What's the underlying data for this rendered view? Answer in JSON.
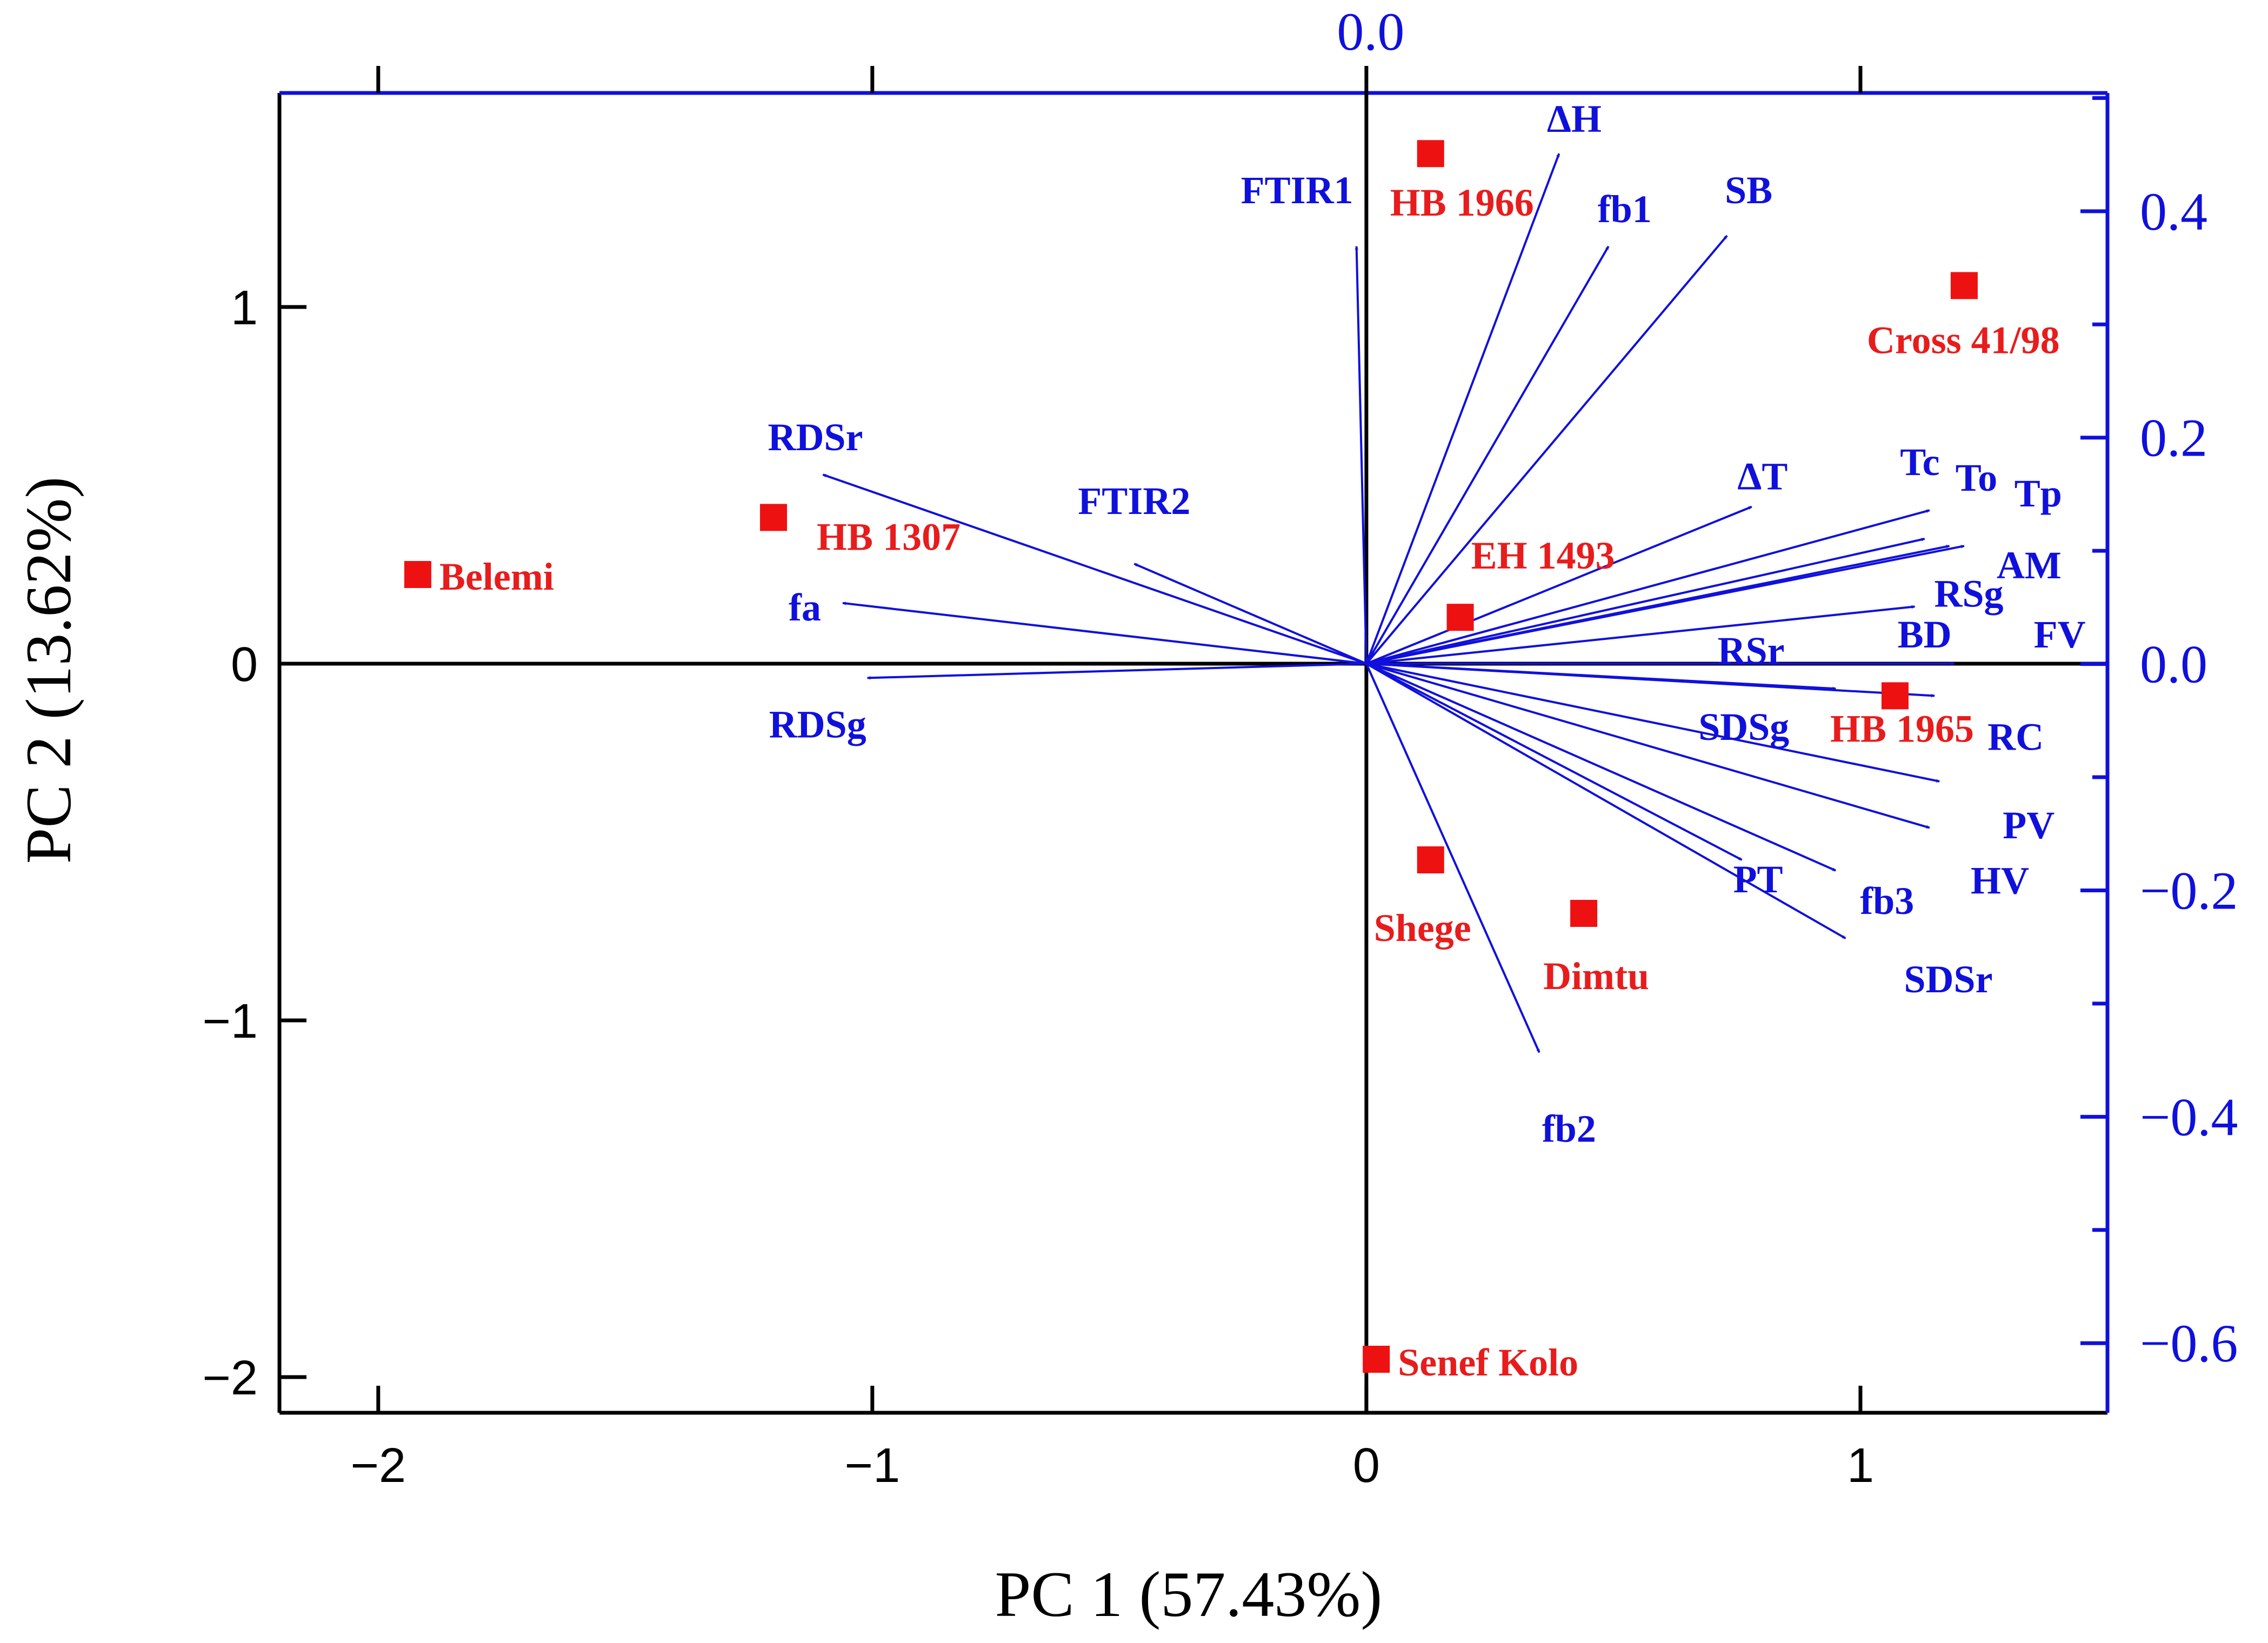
{
  "chart_data": {
    "type": "scatter",
    "subtype": "PCA biplot",
    "xlabel": "PC 1 (57.43%)",
    "ylabel": "PC 2 (13.62%)",
    "xlim": [
      -2.2,
      1.5
    ],
    "ylim": [
      -2.1,
      1.6
    ],
    "x_ticks": [
      {
        "value": -2,
        "label": "−2"
      },
      {
        "value": -1,
        "label": "−1"
      },
      {
        "value": 0,
        "label": "0"
      },
      {
        "value": 1,
        "label": "1"
      }
    ],
    "y_ticks": [
      {
        "value": -2,
        "label": "−2"
      },
      {
        "value": -1,
        "label": "−1"
      },
      {
        "value": 0,
        "label": "0"
      },
      {
        "value": 1,
        "label": "1"
      }
    ],
    "loadings_axis": {
      "color": "#1010dd",
      "right_range": [
        -0.6615,
        0.5045
      ],
      "right_ticks": [
        {
          "value": 0.4,
          "label": "0.4"
        },
        {
          "value": 0.2,
          "label": "0.2"
        },
        {
          "value": 0.0,
          "label": "0.0"
        },
        {
          "value": -0.2,
          "label": "−0.2"
        },
        {
          "value": -0.4,
          "label": "−0.4"
        },
        {
          "value": -0.6,
          "label": "−0.6"
        }
      ],
      "right_minor": [
        0.5,
        0.3,
        0.1,
        -0.1,
        -0.3,
        -0.5
      ],
      "top_ticks": [
        {
          "value": 0.0,
          "label": "0.0"
        }
      ]
    },
    "score_color": "#ee1111",
    "loading_color": "#1010dd",
    "scores": [
      {
        "name": "HB 1966",
        "x": 0.13,
        "y": 1.43
      },
      {
        "name": "Cross 41/98",
        "x": 1.21,
        "y": 1.06
      },
      {
        "name": "HB 1307",
        "x": -1.2,
        "y": 0.41
      },
      {
        "name": "Belemi",
        "x": -1.92,
        "y": 0.25
      },
      {
        "name": "EH 1493",
        "x": 0.19,
        "y": 0.13
      },
      {
        "name": "HB 1965",
        "x": 1.07,
        "y": -0.09
      },
      {
        "name": "Shege",
        "x": 0.13,
        "y": -0.55
      },
      {
        "name": "Dimtu",
        "x": 0.44,
        "y": -0.7
      },
      {
        "name": "Senef Kolo",
        "x": 0.02,
        "y": -1.95
      }
    ],
    "loadings": [
      {
        "name": "ΔH",
        "x": 0.39,
        "y": 1.43
      },
      {
        "name": "FTIR1",
        "x": -0.02,
        "y": 1.17
      },
      {
        "name": "fb1",
        "x": 0.49,
        "y": 1.17
      },
      {
        "name": "SB",
        "x": 0.73,
        "y": 1.2
      },
      {
        "name": "RDSr",
        "x": -1.1,
        "y": 0.53
      },
      {
        "name": "FTIR2",
        "x": -0.47,
        "y": 0.28
      },
      {
        "name": "fa",
        "x": -1.06,
        "y": 0.17
      },
      {
        "name": "RDSg",
        "x": -1.01,
        "y": -0.04
      },
      {
        "name": "ΔT",
        "x": 0.78,
        "y": 0.44
      },
      {
        "name": "Tc",
        "x": 1.14,
        "y": 0.43
      },
      {
        "name": "To",
        "x": 1.18,
        "y": 0.33
      },
      {
        "name": "Tp",
        "x": 1.13,
        "y": 0.35
      },
      {
        "name": "AM",
        "x": 1.21,
        "y": 0.33
      },
      {
        "name": "RSg",
        "x": 1.11,
        "y": 0.16
      },
      {
        "name": "RSr",
        "x": 0.83,
        "y": 0.0
      },
      {
        "name": "BD",
        "x": 1.19,
        "y": 0.0
      },
      {
        "name": "FV",
        "x": 1.19,
        "y": 0.0
      },
      {
        "name": "SDSg",
        "x": 0.95,
        "y": -0.07
      },
      {
        "name": "RC",
        "x": 1.15,
        "y": -0.09
      },
      {
        "name": "PV",
        "x": 1.16,
        "y": -0.33
      },
      {
        "name": "HV",
        "x": 1.14,
        "y": -0.46
      },
      {
        "name": "PT",
        "x": 0.76,
        "y": -0.55
      },
      {
        "name": "fb3",
        "x": 0.95,
        "y": -0.58
      },
      {
        "name": "SDSr",
        "x": 0.97,
        "y": -0.77
      },
      {
        "name": "fb2",
        "x": 0.35,
        "y": -1.09
      }
    ]
  }
}
